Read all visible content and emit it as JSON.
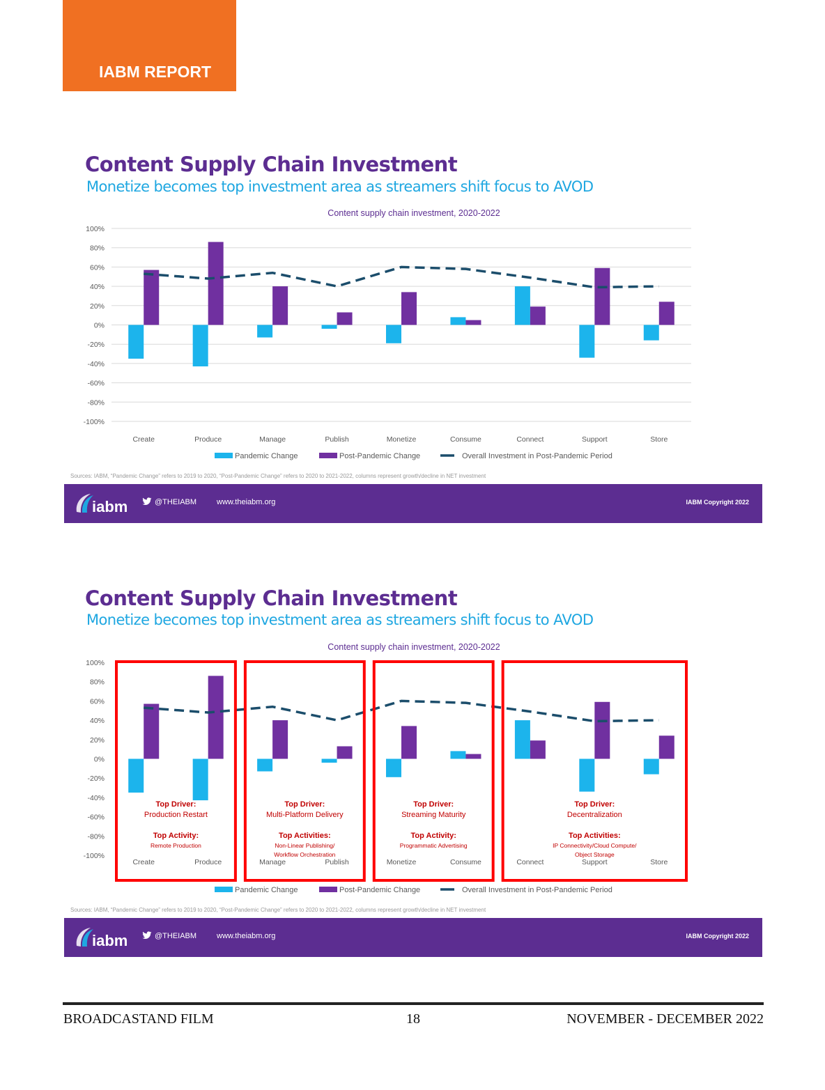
{
  "header": {
    "report_label": "IABM REPORT"
  },
  "slides": [
    {
      "title": "Content Supply Chain Investment",
      "subtitle": "Monetize becomes top investment area as streamers shift focus to AVOD",
      "source": "Sources: IABM, “Pandemic Change” refers to 2019 to 2020, “Post-Pandemic Change” refers to 2020 to 2021-2022, columns represent growth/decline in NET investment"
    },
    {
      "title": "Content Supply Chain Investment",
      "subtitle": "Monetize becomes top investment area as streamers shift focus to AVOD",
      "source": "Sources: IABM, “Pandemic Change” refers to 2019 to 2020, “Post-Pandemic Change” refers to 2020 to 2021-2022, columns represent growth/decline in NET investment"
    }
  ],
  "footer_bar": {
    "logo_text": "iabm",
    "twitter": "@THEIABM",
    "website": "www.theiabm.org",
    "copyright": "IABM Copyright 2022"
  },
  "chart_data": [
    {
      "type": "bar",
      "title": "Content supply chain investment, 2020-2022",
      "categories": [
        "Create",
        "Produce",
        "Manage",
        "Publish",
        "Monetize",
        "Consume",
        "Connect",
        "Support",
        "Store"
      ],
      "ylim": [
        -100,
        100
      ],
      "yticks": [
        "100%",
        "80%",
        "60%",
        "40%",
        "20%",
        "0%",
        "-20%",
        "-40%",
        "-60%",
        "-80%",
        "-100%"
      ],
      "ytick_values": [
        100,
        80,
        60,
        40,
        20,
        0,
        -20,
        -40,
        -60,
        -80,
        -100
      ],
      "grid": true,
      "legend_position": "bottom",
      "series": [
        {
          "name": "Pandemic Change",
          "kind": "bar",
          "color": "#1cb4ec",
          "values": [
            -35,
            -43,
            -13,
            -4,
            -19,
            8,
            40,
            -34,
            -16
          ]
        },
        {
          "name": "Post-Pandemic Change",
          "kind": "bar",
          "color": "#7030a0",
          "values": [
            57,
            86,
            40,
            13,
            34,
            5,
            19,
            59,
            24
          ]
        },
        {
          "name": "Overall Investment in Post-Pandemic Period",
          "kind": "line",
          "style": "dashed",
          "color": "#1b4d6b",
          "values": [
            53,
            48,
            54,
            40,
            60,
            58,
            49,
            39,
            40
          ]
        }
      ]
    },
    {
      "type": "bar",
      "title": "Content supply chain investment, 2020-2022",
      "categories": [
        "Create",
        "Produce",
        "Manage",
        "Publish",
        "Monetize",
        "Consume",
        "Connect",
        "Support",
        "Store"
      ],
      "ylim": [
        -100,
        100
      ],
      "yticks": [
        "100%",
        "80%",
        "60%",
        "40%",
        "20%",
        "0%",
        "-20%",
        "-40%",
        "-60%",
        "-80%",
        "-100%"
      ],
      "ytick_values": [
        100,
        80,
        60,
        40,
        20,
        0,
        -20,
        -40,
        -60,
        -80,
        -100
      ],
      "grid": false,
      "legend_position": "bottom",
      "highlight_color": "#ff0000",
      "groups": [
        {
          "categories": [
            "Create",
            "Produce"
          ],
          "driver_label": "Top Driver",
          "driver": "Production Restart",
          "activity_label": "Top Activity",
          "activity_lines": [
            "Remote Production"
          ]
        },
        {
          "categories": [
            "Manage",
            "Publish"
          ],
          "driver_label": "Top Driver",
          "driver": "Multi-Platform Delivery",
          "activity_label": "Top Activities",
          "activity_lines": [
            "Non-Linear Publishing/",
            "Workflow Orchestration"
          ]
        },
        {
          "categories": [
            "Monetize",
            "Consume"
          ],
          "driver_label": "Top Driver",
          "driver": "Streaming Maturity",
          "activity_label": "Top Activity",
          "activity_lines": [
            "Programmatic Advertising"
          ]
        },
        {
          "categories": [
            "Connect",
            "Support",
            "Store"
          ],
          "driver_label": "Top Driver",
          "driver": "Decentralization",
          "activity_label": "Top Activities",
          "activity_lines": [
            "IP Connectivity/Cloud Compute/",
            "Object Storage"
          ]
        }
      ],
      "series": [
        {
          "name": "Pandemic Change",
          "kind": "bar",
          "color": "#1cb4ec",
          "values": [
            -35,
            -43,
            -13,
            -4,
            -19,
            8,
            40,
            -34,
            -16
          ]
        },
        {
          "name": "Post-Pandemic Change",
          "kind": "bar",
          "color": "#7030a0",
          "values": [
            57,
            86,
            40,
            13,
            34,
            5,
            19,
            59,
            24
          ]
        },
        {
          "name": "Overall Investment in Post-Pandemic Period",
          "kind": "line",
          "style": "dashed",
          "color": "#1b4d6b",
          "values": [
            53,
            48,
            54,
            40,
            60,
            58,
            49,
            39,
            40
          ]
        }
      ]
    }
  ],
  "page_footer": {
    "publication": "BROADCASTAND FILM",
    "page_number": "18",
    "issue": "NOVEMBER - DECEMBER 2022"
  }
}
